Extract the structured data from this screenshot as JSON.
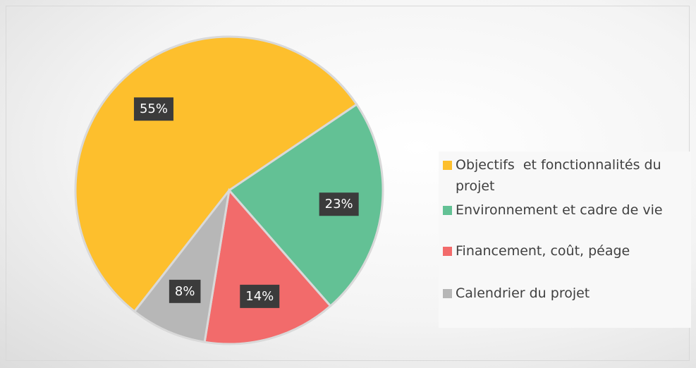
{
  "chart_data": {
    "type": "pie",
    "categories": [
      "Objectifs  et fonctionnalités du projet",
      "Environnement et cadre de vie",
      "Financement, coût, péage",
      "Calendrier du projet"
    ],
    "values": [
      55,
      23,
      14,
      8
    ],
    "value_labels": [
      "55%",
      "23%",
      "14%",
      "8%"
    ],
    "colors": [
      "#FDBF2D",
      "#63C195",
      "#F26B6B",
      "#B7B7B7"
    ],
    "legend": "right"
  }
}
